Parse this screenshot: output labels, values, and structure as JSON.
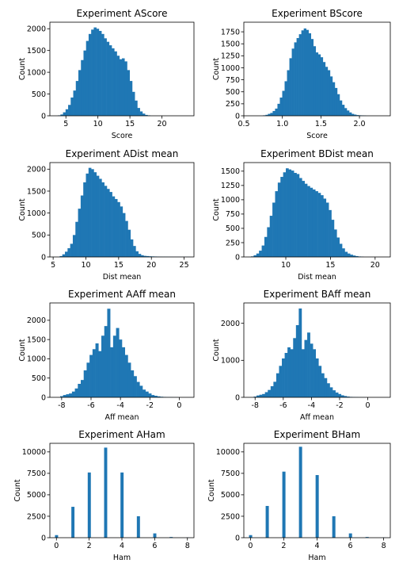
{
  "chart_data": [
    {
      "type": "bar",
      "title": "Experiment AScore",
      "xlabel": "Score",
      "ylabel": "Count",
      "xlim": [
        2.5,
        25
      ],
      "ylim": [
        0,
        2150
      ],
      "xticks": [
        5,
        10,
        15,
        20
      ],
      "yticks": [
        0,
        500,
        1000,
        1500,
        2000
      ],
      "bin_start": 3.75,
      "bin_width": 0.4,
      "values": [
        10,
        30,
        80,
        150,
        250,
        420,
        580,
        800,
        1050,
        1280,
        1500,
        1720,
        1880,
        1980,
        2030,
        2000,
        1950,
        1880,
        1780,
        1700,
        1620,
        1550,
        1480,
        1380,
        1300,
        1320,
        1250,
        1050,
        800,
        550,
        350,
        180,
        100,
        50,
        20,
        10
      ]
    },
    {
      "type": "bar",
      "title": "Experiment BScore",
      "xlabel": "Score",
      "ylabel": "Count",
      "xlim": [
        0.5,
        2.4
      ],
      "ylim": [
        0,
        1950
      ],
      "xticks": [
        0.5,
        1.0,
        1.5,
        2.0
      ],
      "yticks": [
        0,
        250,
        500,
        750,
        1000,
        1250,
        1500,
        1750
      ],
      "bin_start": 0.75,
      "bin_width": 0.031,
      "values": [
        10,
        20,
        40,
        60,
        100,
        150,
        250,
        380,
        520,
        720,
        950,
        1200,
        1400,
        1530,
        1620,
        1700,
        1780,
        1820,
        1790,
        1720,
        1600,
        1450,
        1320,
        1280,
        1220,
        1120,
        1020,
        950,
        820,
        700,
        580,
        450,
        320,
        230,
        160,
        110,
        70,
        40,
        25,
        15,
        10,
        8,
        5
      ]
    },
    {
      "type": "bar",
      "title": "Experiment ADist mean",
      "xlabel": "Dist mean",
      "ylabel": "Count",
      "xlim": [
        4.5,
        26.5
      ],
      "ylim": [
        0,
        2150
      ],
      "xticks": [
        5,
        10,
        15,
        20,
        25
      ],
      "yticks": [
        0,
        500,
        1000,
        1500,
        2000
      ],
      "bin_start": 6.0,
      "bin_width": 0.4,
      "values": [
        20,
        60,
        120,
        200,
        300,
        500,
        800,
        1100,
        1400,
        1700,
        1900,
        2030,
        2000,
        1930,
        1850,
        1780,
        1700,
        1620,
        1550,
        1480,
        1380,
        1320,
        1250,
        1150,
        1000,
        820,
        620,
        400,
        250,
        130,
        70,
        40,
        25,
        20,
        15,
        12,
        10,
        8,
        6,
        5,
        5,
        4,
        4,
        3,
        3,
        3,
        2,
        2,
        2,
        2
      ]
    },
    {
      "type": "bar",
      "title": "Experiment BDist mean",
      "xlabel": "Dist mean",
      "ylabel": "Count",
      "xlim": [
        5.3,
        21.7
      ],
      "ylim": [
        0,
        1650
      ],
      "xticks": [
        10,
        15,
        20
      ],
      "yticks": [
        0,
        250,
        500,
        750,
        1000,
        1250,
        1500
      ],
      "bin_start": 6.1,
      "bin_width": 0.3,
      "values": [
        10,
        30,
        60,
        110,
        200,
        350,
        520,
        720,
        950,
        1150,
        1300,
        1400,
        1480,
        1550,
        1530,
        1510,
        1470,
        1450,
        1380,
        1330,
        1280,
        1240,
        1210,
        1180,
        1150,
        1120,
        1080,
        1020,
        950,
        820,
        650,
        480,
        340,
        230,
        150,
        90,
        60,
        40,
        25,
        15,
        8,
        5
      ]
    },
    {
      "type": "bar",
      "title": "Experiment AAff mean",
      "xlabel": "Aff mean",
      "ylabel": "Count",
      "xlim": [
        -8.8,
        1.0
      ],
      "ylim": [
        0,
        2450
      ],
      "xticks": [
        -8,
        -6,
        -4,
        -2,
        0
      ],
      "yticks": [
        0,
        500,
        1000,
        1500,
        2000
      ],
      "bin_start": -8.1,
      "bin_width": 0.2,
      "values": [
        30,
        60,
        80,
        100,
        150,
        230,
        350,
        450,
        700,
        900,
        1100,
        1250,
        1400,
        1200,
        1600,
        1850,
        2300,
        1300,
        1600,
        1800,
        1500,
        1300,
        1100,
        900,
        700,
        550,
        400,
        300,
        200,
        150,
        100,
        60,
        40,
        25,
        15,
        10,
        5,
        5,
        3,
        3
      ]
    },
    {
      "type": "bar",
      "title": "Experiment BAff mean",
      "xlabel": "Aff mean",
      "ylabel": "Count",
      "xlim": [
        -8.8,
        1.6
      ],
      "ylim": [
        0,
        2550
      ],
      "xticks": [
        -8,
        -6,
        -4,
        -2,
        0
      ],
      "yticks": [
        0,
        1000,
        2000
      ],
      "bin_start": -8.1,
      "bin_width": 0.2,
      "values": [
        20,
        50,
        70,
        90,
        140,
        200,
        300,
        420,
        650,
        850,
        1050,
        1200,
        1350,
        1300,
        1600,
        1950,
        2400,
        1300,
        1550,
        1750,
        1450,
        1300,
        1050,
        850,
        650,
        520,
        380,
        270,
        190,
        130,
        90,
        55,
        35,
        20,
        12,
        8,
        5,
        3,
        3,
        2
      ]
    },
    {
      "type": "bar",
      "title": "Experiment AHam",
      "xlabel": "Ham",
      "ylabel": "Count",
      "xlim": [
        -0.4,
        8.4
      ],
      "ylim": [
        0,
        11000
      ],
      "xticks": [
        0,
        2,
        4,
        6,
        8
      ],
      "yticks": [
        0,
        2500,
        5000,
        7500,
        10000
      ],
      "x": [
        0,
        1,
        2,
        3,
        4,
        5,
        6,
        7,
        8
      ],
      "values": [
        300,
        3600,
        7600,
        10500,
        7600,
        2500,
        500,
        80,
        20
      ]
    },
    {
      "type": "bar",
      "title": "Experiment BHam",
      "xlabel": "Ham",
      "ylabel": "Count",
      "xlim": [
        -0.4,
        8.4
      ],
      "ylim": [
        0,
        11000
      ],
      "xticks": [
        0,
        2,
        4,
        6,
        8
      ],
      "yticks": [
        0,
        2500,
        5000,
        7500,
        10000
      ],
      "x": [
        0,
        1,
        2,
        3,
        4,
        5,
        6,
        7,
        8
      ],
      "values": [
        300,
        3700,
        7700,
        10600,
        7300,
        2500,
        500,
        80,
        20
      ]
    }
  ]
}
